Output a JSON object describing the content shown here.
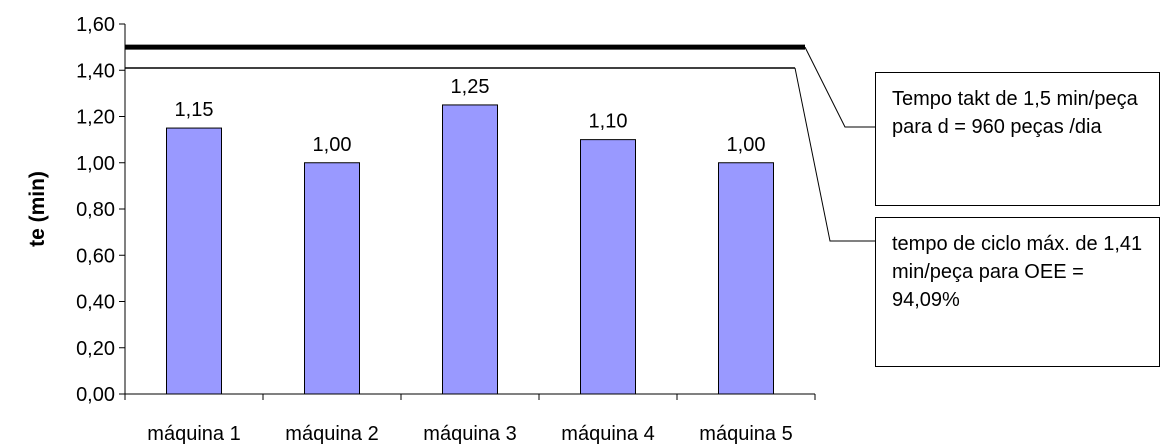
{
  "chart_data": {
    "type": "bar",
    "categories": [
      "máquina 1",
      "máquina 2",
      "máquina 3",
      "máquina 4",
      "máquina 5"
    ],
    "values": [
      1.15,
      1.0,
      1.25,
      1.1,
      1.0
    ],
    "value_labels": [
      "1,15",
      "1,00",
      "1,25",
      "1,10",
      "1,00"
    ],
    "ylabel": "te (min)",
    "ylim": [
      0,
      1.6
    ],
    "yticks": [
      0,
      0.2,
      0.4,
      0.6,
      0.8,
      1.0,
      1.2,
      1.4,
      1.6
    ],
    "ytick_labels": [
      "0,00",
      "0,20",
      "0,40",
      "0,60",
      "0,80",
      "1,00",
      "1,20",
      "1,40",
      "1,60"
    ],
    "bar_color": "#9999ff",
    "reference_lines": [
      {
        "value": 1.5,
        "style": "thick"
      },
      {
        "value": 1.41,
        "style": "thin"
      }
    ],
    "annotations": [
      {
        "text": "Tempo takt de 1,5 min/peça para d = 960 peças /dia"
      },
      {
        "text": "tempo de ciclo máx. de 1,41 min/peça para OEE = 94,09%"
      }
    ]
  }
}
